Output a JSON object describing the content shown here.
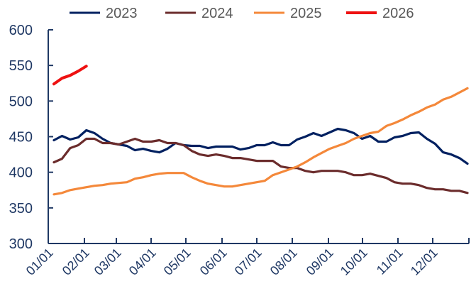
{
  "chart_data": {
    "type": "line",
    "title": "",
    "xlabel": "",
    "ylabel": "",
    "ylim": [
      300,
      600
    ],
    "yticks": [
      300,
      350,
      400,
      450,
      500,
      550,
      600
    ],
    "x_tick_labels": [
      "01/01",
      "02/01",
      "03/01",
      "04/01",
      "05/01",
      "06/01",
      "07/01",
      "08/01",
      "09/01",
      "10/01",
      "11/01",
      "12/01"
    ],
    "x_unit": "week of year (1-52)",
    "legend_position": "top",
    "grid": false,
    "series": [
      {
        "name": "2023",
        "color": "#002060",
        "values": [
          445,
          451,
          446,
          449,
          459,
          455,
          447,
          441,
          439,
          437,
          431,
          433,
          430,
          428,
          433,
          441,
          438,
          437,
          437,
          434,
          436,
          436,
          436,
          432,
          434,
          438,
          438,
          442,
          438,
          438,
          446,
          450,
          455,
          451,
          456,
          461,
          459,
          455,
          447,
          451,
          443,
          443,
          449,
          451,
          455,
          456,
          447,
          440,
          428,
          425,
          420,
          412
        ]
      },
      {
        "name": "2024",
        "color": "#6B2C2C",
        "values": [
          414,
          419,
          434,
          438,
          447,
          447,
          441,
          441,
          439,
          443,
          447,
          443,
          443,
          445,
          441,
          441,
          438,
          430,
          425,
          423,
          425,
          423,
          420,
          420,
          418,
          416,
          416,
          416,
          408,
          406,
          406,
          402,
          400,
          402,
          402,
          402,
          400,
          396,
          396,
          398,
          395,
          392,
          386,
          384,
          384,
          382,
          378,
          376,
          376,
          374,
          374,
          371
        ]
      },
      {
        "name": "2025",
        "color": "#F4883A",
        "values": [
          369,
          371,
          375,
          377,
          379,
          381,
          382,
          384,
          385,
          386,
          391,
          393,
          396,
          398,
          399,
          399,
          399,
          393,
          388,
          384,
          382,
          380,
          380,
          382,
          384,
          386,
          388,
          396,
          400,
          404,
          408,
          414,
          421,
          427,
          433,
          437,
          441,
          447,
          451,
          455,
          457,
          465,
          469,
          474,
          480,
          485,
          491,
          495,
          502,
          506,
          512,
          518
        ]
      },
      {
        "name": "2026",
        "color": "#EE1111",
        "values": [
          524,
          532,
          536,
          542,
          549
        ]
      }
    ]
  }
}
